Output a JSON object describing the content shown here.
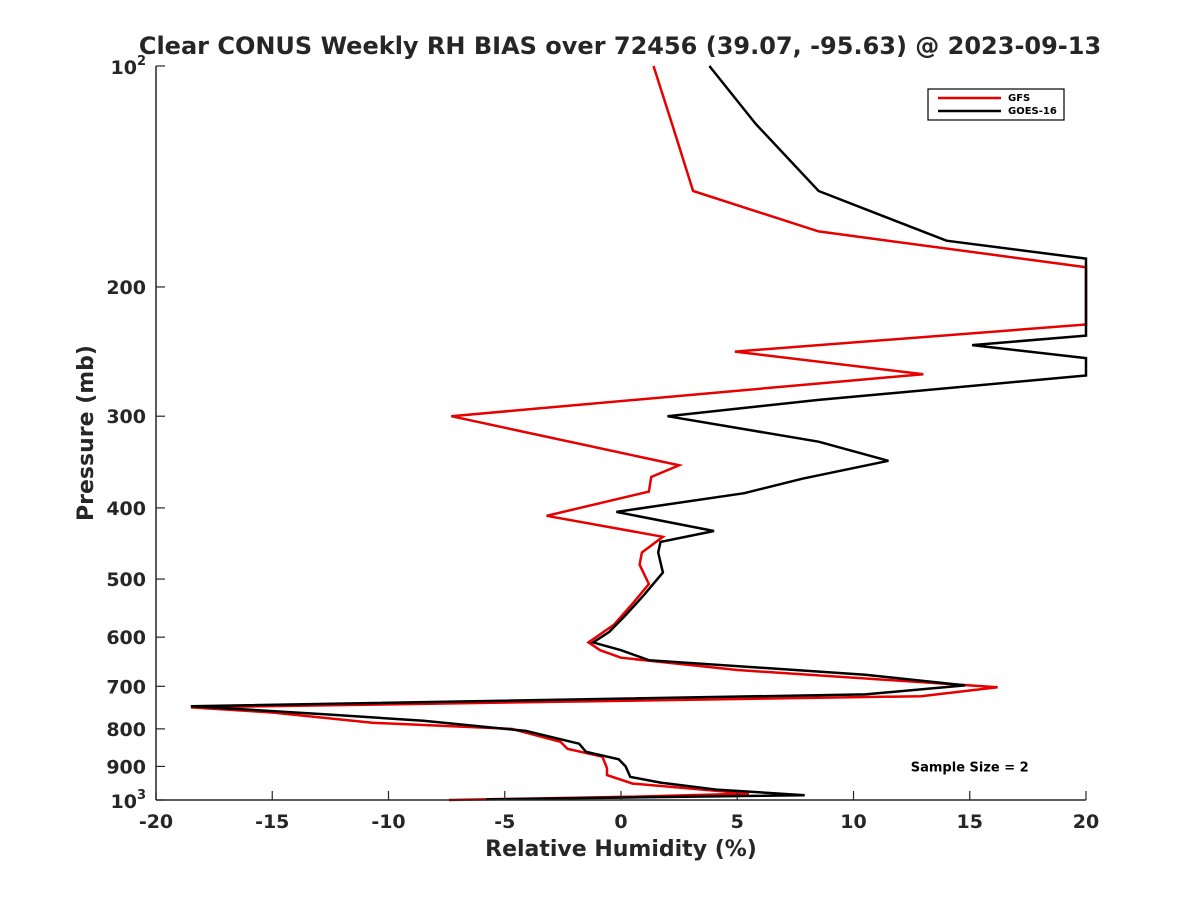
{
  "chart_data": {
    "type": "line",
    "title": "Clear CONUS Weekly RH BIAS over 72456 (39.07, -95.63) @ 2023-09-13",
    "xlabel": "Relative Humidity (%)",
    "ylabel": "Pressure (mb)",
    "xlim": [
      -20,
      20
    ],
    "ylim": [
      100,
      1000
    ],
    "yscale": "log",
    "yreverse": true,
    "grid": false,
    "legend_position": "top-right",
    "x_ticks": [
      {
        "value": -20,
        "label": "-20"
      },
      {
        "value": -15,
        "label": "-15"
      },
      {
        "value": -10,
        "label": "-10"
      },
      {
        "value": -5,
        "label": "-5"
      },
      {
        "value": 0,
        "label": "0"
      },
      {
        "value": 5,
        "label": "5"
      },
      {
        "value": 10,
        "label": "10"
      },
      {
        "value": 15,
        "label": "15"
      },
      {
        "value": 20,
        "label": "20"
      }
    ],
    "y_ticks": [
      {
        "value": 100,
        "base": "10",
        "exp": "2"
      },
      {
        "value": 200,
        "label": "200"
      },
      {
        "value": 300,
        "label": "300"
      },
      {
        "value": 400,
        "label": "400"
      },
      {
        "value": 500,
        "label": "500"
      },
      {
        "value": 600,
        "label": "600"
      },
      {
        "value": 700,
        "label": "700"
      },
      {
        "value": 800,
        "label": "800"
      },
      {
        "value": 900,
        "label": "900"
      },
      {
        "value": 1000,
        "base": "10",
        "exp": "3"
      }
    ],
    "series": [
      {
        "name": "GFS",
        "color": "#e60000",
        "points": [
          [
            1.4,
            100
          ],
          [
            2.2,
            120
          ],
          [
            3.1,
            148
          ],
          [
            8.5,
            168
          ],
          [
            20,
            188
          ],
          [
            20,
            225
          ],
          [
            4.9,
            245
          ],
          [
            13.0,
            263
          ],
          [
            -7.3,
            300
          ],
          [
            2.5,
            350
          ],
          [
            1.3,
            363
          ],
          [
            1.2,
            380
          ],
          [
            -3.2,
            410
          ],
          [
            1.8,
            438
          ],
          [
            0.9,
            460
          ],
          [
            0.8,
            478
          ],
          [
            1.2,
            508
          ],
          [
            0.5,
            540
          ],
          [
            -0.3,
            577
          ],
          [
            -1.4,
            610
          ],
          [
            -0.9,
            625
          ],
          [
            0,
            640
          ],
          [
            5,
            665
          ],
          [
            16.2,
            702
          ],
          [
            12.9,
            722
          ],
          [
            -18.5,
            748
          ],
          [
            -15,
            760
          ],
          [
            -10.7,
            785
          ],
          [
            -4.7,
            800
          ],
          [
            -2.6,
            833
          ],
          [
            -2.3,
            852
          ],
          [
            -0.8,
            873
          ],
          [
            -0.6,
            905
          ],
          [
            -0.6,
            925
          ],
          [
            0.5,
            950
          ],
          [
            5.5,
            980
          ],
          [
            0.3,
            990
          ],
          [
            -7.4,
            1000
          ]
        ]
      },
      {
        "name": "GOES-16",
        "color": "#000000",
        "points": [
          [
            3.8,
            100
          ],
          [
            5.8,
            120
          ],
          [
            8.5,
            148
          ],
          [
            14.0,
            173
          ],
          [
            20,
            183
          ],
          [
            20,
            233
          ],
          [
            15.1,
            240
          ],
          [
            20,
            250
          ],
          [
            20,
            264
          ],
          [
            8.5,
            285
          ],
          [
            2.0,
            300
          ],
          [
            8.5,
            325
          ],
          [
            11.5,
            345
          ],
          [
            7.8,
            365
          ],
          [
            5.3,
            382
          ],
          [
            -0.2,
            405
          ],
          [
            4.0,
            430
          ],
          [
            1.7,
            445
          ],
          [
            1.6,
            460
          ],
          [
            1.8,
            490
          ],
          [
            1.0,
            525
          ],
          [
            0.2,
            560
          ],
          [
            -0.5,
            590
          ],
          [
            -1.2,
            610
          ],
          [
            0,
            625
          ],
          [
            1.2,
            645
          ],
          [
            10.5,
            675
          ],
          [
            14.8,
            698
          ],
          [
            10.5,
            718
          ],
          [
            -18.5,
            745
          ],
          [
            -12.5,
            765
          ],
          [
            -8.5,
            780
          ],
          [
            -4.1,
            805
          ],
          [
            -1.8,
            838
          ],
          [
            -1.5,
            860
          ],
          [
            -0.1,
            880
          ],
          [
            0.2,
            900
          ],
          [
            0.4,
            930
          ],
          [
            1.7,
            947
          ],
          [
            4.1,
            968
          ],
          [
            7.9,
            985
          ],
          [
            -5.8,
            998
          ]
        ]
      }
    ],
    "annotations": [
      {
        "text": "Sample Size = 2",
        "x": 15,
        "p": 900
      }
    ]
  }
}
